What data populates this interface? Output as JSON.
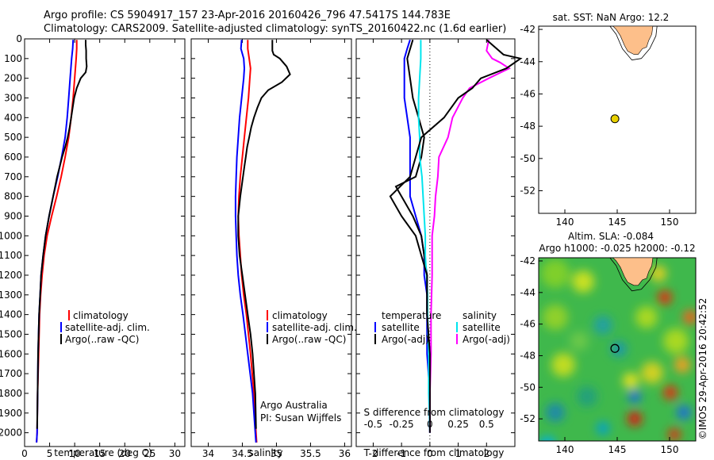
{
  "header": {
    "line1": "Argo profile: CS 5904917_157 23-Apr-2016 20160426_796 47.5417S 144.783E",
    "line2": "Climatology: CARS2009. Satellite-adjusted climatology: synTS_20160422.nc (1.6d earlier)"
  },
  "colors": {
    "climatology": "#ff0000",
    "satellite": "#0000ff",
    "argo": "#000000",
    "sat_diff": "#00e5ee",
    "argo_sal_diff": "#ff00ff",
    "land": "#fdbf8a",
    "float": "#e8d000"
  },
  "chart_data": [
    {
      "type": "line",
      "panel": "temperature",
      "xlabel": "temperature (deg C)",
      "ylabel": "",
      "xlim": [
        0,
        32
      ],
      "ylim": [
        2070,
        0
      ],
      "xticks": [
        0,
        5,
        10,
        15,
        20,
        25,
        30
      ],
      "yticks": [
        0,
        100,
        200,
        300,
        400,
        500,
        600,
        700,
        800,
        900,
        1000,
        1100,
        1200,
        1300,
        1400,
        1500,
        1600,
        1700,
        1800,
        1900,
        2000
      ],
      "legend": [
        "climatology",
        "satellite-adj. clim.",
        "Argo(..raw -QC)"
      ],
      "series": [
        {
          "name": "climatology",
          "depth": [
            5,
            50,
            100,
            200,
            300,
            400,
            500,
            600,
            700,
            800,
            900,
            1000,
            1100,
            1200,
            1300,
            1400,
            1600,
            1800,
            2000,
            2050
          ],
          "values": [
            10.4,
            10.4,
            10.3,
            10.0,
            9.7,
            9.3,
            8.8,
            8.1,
            7.3,
            6.4,
            5.4,
            4.5,
            3.9,
            3.5,
            3.2,
            3.0,
            2.8,
            2.6,
            2.5,
            2.4
          ]
        },
        {
          "name": "satellite-adj. clim.",
          "depth": [
            5,
            50,
            100,
            200,
            300,
            400,
            500,
            600,
            700,
            800,
            900,
            1000,
            1100,
            1200,
            1300,
            1400,
            1600,
            1800,
            2000,
            2050
          ],
          "values": [
            9.7,
            9.6,
            9.4,
            9.1,
            8.8,
            8.5,
            8.1,
            7.4,
            6.6,
            5.7,
            4.9,
            4.2,
            3.7,
            3.3,
            3.1,
            2.9,
            2.7,
            2.6,
            2.5,
            2.4
          ]
        },
        {
          "name": "Argo(..raw -QC)",
          "depth": [
            5,
            30,
            60,
            100,
            140,
            170,
            200,
            250,
            300,
            350,
            400,
            450,
            500,
            550,
            600,
            650,
            700,
            800,
            900,
            1000,
            1100,
            1200,
            1300,
            1400,
            1600,
            1800,
            1980
          ],
          "values": [
            12.2,
            12.2,
            12.3,
            12.3,
            12.4,
            12.2,
            11.2,
            10.4,
            9.9,
            9.6,
            9.3,
            9.0,
            8.6,
            8.1,
            7.5,
            7.0,
            6.5,
            5.7,
            4.9,
            4.2,
            3.7,
            3.3,
            3.1,
            2.9,
            2.7,
            2.6,
            2.5
          ]
        }
      ]
    },
    {
      "type": "line",
      "panel": "salinity",
      "xlabel": "salinity",
      "ylabel": "",
      "xlim": [
        33.75,
        36.1
      ],
      "ylim": [
        2070,
        0
      ],
      "xticks": [
        34,
        34.5,
        35,
        35.5,
        36
      ],
      "legend": [
        "climatology",
        "satellite-adj. clim.",
        "Argo(..raw -QC)"
      ],
      "annotation": [
        "Argo Australia",
        "PI: Susan Wijffels"
      ],
      "series": [
        {
          "name": "climatology",
          "depth": [
            5,
            50,
            100,
            150,
            200,
            300,
            400,
            500,
            600,
            700,
            800,
            900,
            1000,
            1100,
            1200,
            1300,
            1400,
            1600,
            1800,
            2000,
            2050
          ],
          "values": [
            34.58,
            34.58,
            34.6,
            34.62,
            34.61,
            34.59,
            34.56,
            34.53,
            34.5,
            34.47,
            34.45,
            34.44,
            34.45,
            34.47,
            34.49,
            34.52,
            34.56,
            34.62,
            34.67,
            34.7,
            34.71
          ]
        },
        {
          "name": "satellite-adj. clim.",
          "depth": [
            5,
            50,
            100,
            150,
            200,
            300,
            400,
            500,
            600,
            700,
            800,
            900,
            1000,
            1100,
            1200,
            1300,
            1400,
            1600,
            1800,
            2000,
            2050
          ],
          "values": [
            34.49,
            34.48,
            34.52,
            34.53,
            34.52,
            34.49,
            34.46,
            34.44,
            34.42,
            34.41,
            34.4,
            34.4,
            34.41,
            34.42,
            34.44,
            34.47,
            34.51,
            34.58,
            34.65,
            34.69,
            34.7
          ]
        },
        {
          "name": "Argo(..raw -QC)",
          "depth": [
            5,
            60,
            80,
            100,
            140,
            180,
            220,
            260,
            300,
            350,
            400,
            450,
            500,
            550,
            600,
            650,
            700,
            800,
            900,
            1000,
            1100,
            1200,
            1300,
            1400,
            1500,
            1600,
            1700,
            1800,
            1980
          ],
          "values": [
            34.94,
            34.94,
            34.96,
            35.05,
            35.15,
            35.2,
            35.08,
            34.88,
            34.78,
            34.72,
            34.67,
            34.63,
            34.6,
            34.57,
            34.55,
            34.53,
            34.51,
            34.47,
            34.44,
            34.44,
            34.46,
            34.5,
            34.54,
            34.58,
            34.62,
            34.65,
            34.67,
            34.69,
            34.7
          ]
        }
      ]
    },
    {
      "type": "line",
      "panel": "difference",
      "xlabel": "T difference from climatology",
      "xlabel_top": "S difference from climatology",
      "xlim": [
        -2.6,
        3.0
      ],
      "ylim": [
        2070,
        0
      ],
      "xticks": [
        -2,
        -1,
        0,
        1,
        2
      ],
      "sticks_labels": [
        "-0.5",
        "-0.25",
        "0",
        "0.25",
        "0.5"
      ],
      "legend": {
        "temperature": [
          "satellite",
          "Argo(-adj)"
        ],
        "salinity": [
          "satellite",
          "Argo(-adj)"
        ]
      },
      "series": [
        {
          "name": "temperature satellite",
          "depth": [
            5,
            50,
            100,
            200,
            300,
            400,
            500,
            600,
            700,
            800,
            900,
            1000,
            1100,
            1200,
            1300,
            1400,
            1600,
            1800,
            2000
          ],
          "values": [
            -0.7,
            -0.8,
            -0.9,
            -0.9,
            -0.9,
            -0.8,
            -0.7,
            -0.7,
            -0.7,
            -0.7,
            -0.5,
            -0.3,
            -0.2,
            -0.2,
            -0.1,
            -0.1,
            -0.1,
            0,
            0
          ]
        },
        {
          "name": "temperature Argo(-adj)",
          "depth": [
            5,
            100,
            200,
            300,
            400,
            500,
            600,
            700,
            750,
            800,
            850,
            900,
            1000,
            1100,
            1200,
            1300,
            1400,
            1600,
            1800,
            2000
          ],
          "values": [
            -0.6,
            -0.8,
            -0.7,
            -0.6,
            -0.4,
            -0.2,
            -0.3,
            -0.5,
            -1.2,
            -1.0,
            -0.8,
            -0.6,
            -0.3,
            -0.2,
            -0.1,
            -0.1,
            -0.1,
            0,
            0,
            0
          ]
        },
        {
          "name": "salinity satellite",
          "depth": [
            5,
            50,
            100,
            200,
            300,
            400,
            500,
            600,
            700,
            800,
            900,
            1000,
            1100,
            1200,
            1300,
            1400,
            1600,
            1800,
            2000
          ],
          "values": [
            -0.08,
            -0.08,
            -0.08,
            -0.09,
            -0.1,
            -0.1,
            -0.09,
            -0.09,
            -0.07,
            -0.06,
            -0.05,
            -0.04,
            -0.04,
            -0.03,
            -0.02,
            -0.02,
            -0.01,
            -0.01,
            0
          ]
        },
        {
          "name": "salinity Argo(-adj)",
          "depth": [
            5,
            60,
            100,
            120,
            150,
            200,
            250,
            300,
            400,
            500,
            600,
            700,
            800,
            900,
            1000,
            1200,
            1400,
            1600,
            1800,
            2000
          ],
          "values": [
            0.52,
            0.5,
            0.55,
            0.62,
            0.7,
            0.52,
            0.35,
            0.29,
            0.2,
            0.16,
            0.08,
            0.07,
            0.05,
            0.04,
            0.02,
            0.02,
            0.01,
            0.01,
            0,
            0
          ]
        },
        {
          "name": "T Argo minus sat",
          "depth": [
            5,
            80,
            100,
            150,
            200,
            250,
            300,
            400,
            500,
            600,
            700,
            800,
            900,
            1000,
            1100,
            1200,
            1400,
            1600,
            1800,
            2000
          ],
          "values": [
            2.0,
            2.6,
            3.2,
            2.7,
            1.8,
            1.5,
            1.0,
            0.5,
            -0.3,
            -0.5,
            -0.7,
            -1.4,
            -1.0,
            -0.5,
            -0.3,
            -0.1,
            -0.1,
            0,
            0,
            0
          ]
        }
      ]
    }
  ],
  "sst_map": {
    "title": "sat. SST: NaN Argo: 12.2",
    "xticks": [
      "140",
      "145",
      "150"
    ],
    "yticks": [
      "-42",
      "-44",
      "-46",
      "-48",
      "-50",
      "-52"
    ],
    "lon_range": [
      137.5,
      152.5
    ],
    "lat_range": [
      -53.4,
      -41.8
    ],
    "float_lon": 144.78,
    "float_lat": -47.54
  },
  "sla_map": {
    "title1": "Altim. SLA: -0.084",
    "title2": "Argo h1000: -0.025 h2000: -0.12",
    "xticks": [
      "140",
      "145",
      "150"
    ],
    "yticks": [
      "-42",
      "-44",
      "-46",
      "-48",
      "-50",
      "-52"
    ],
    "lon_range": [
      137.5,
      152.5
    ],
    "lat_range": [
      -53.4,
      -41.8
    ],
    "float_lon": 144.78,
    "float_lat": -47.54
  },
  "footer": {
    "stamp": "©IMOS 29-Apr-2016 20:42:52"
  }
}
